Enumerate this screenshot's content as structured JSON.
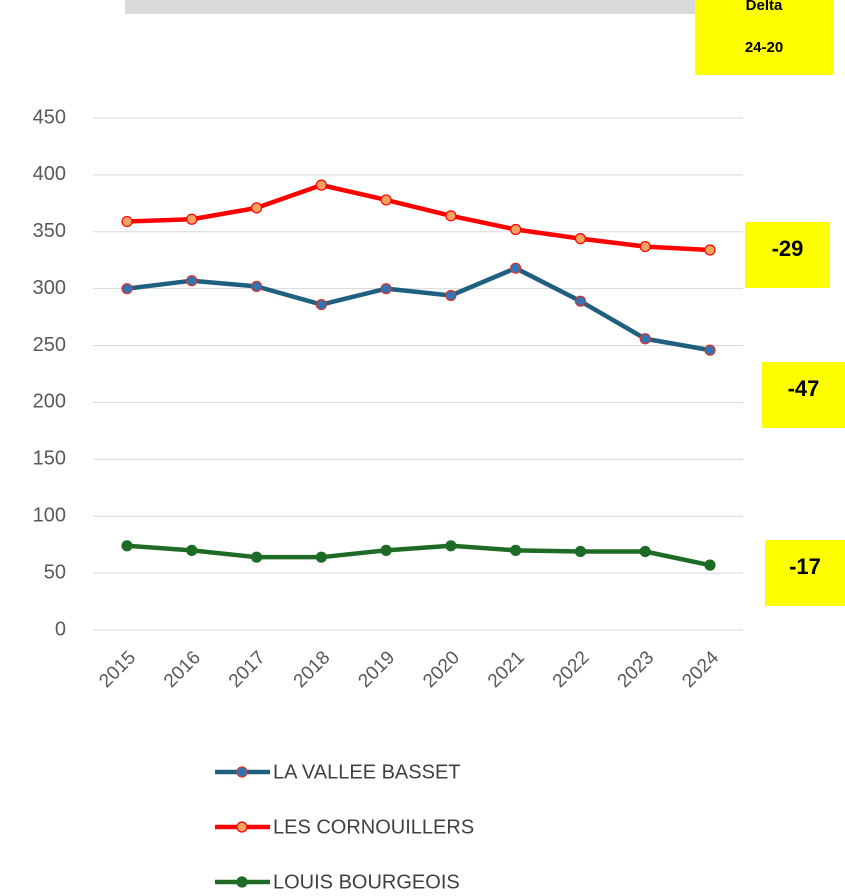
{
  "chart_data": {
    "type": "line",
    "header": [
      "Delta",
      "24-20"
    ],
    "categories": [
      "2015",
      "2016",
      "2017",
      "2018",
      "2019",
      "2020",
      "2021",
      "2022",
      "2023",
      "2024"
    ],
    "series": [
      {
        "name": "LA VALLEE BASSET",
        "color": "#1f5f80",
        "marker_color": "#2e75b6",
        "marker_edge": "#e0302a",
        "values": [
          300,
          307,
          302,
          286,
          300,
          294,
          318,
          289,
          256,
          246
        ]
      },
      {
        "name": "LES CORNOUILLERS",
        "color": "#ff0000",
        "marker_color": "#f4a460",
        "marker_edge": "#ff0000",
        "values": [
          359,
          361,
          371,
          391,
          378,
          364,
          352,
          344,
          337,
          334
        ]
      },
      {
        "name": "LOUIS BOURGEOIS",
        "color": "#1e6b26",
        "marker_color": "#1e6b26",
        "marker_edge": "#1e6b26",
        "values": [
          74,
          70,
          64,
          64,
          70,
          74,
          70,
          69,
          69,
          57
        ]
      }
    ],
    "delta_labels": [
      "-29",
      "-47",
      "-17"
    ],
    "ylim": [
      0,
      450
    ],
    "yticks": [
      0,
      50,
      100,
      150,
      200,
      250,
      300,
      350,
      400,
      450
    ],
    "grid": true
  }
}
